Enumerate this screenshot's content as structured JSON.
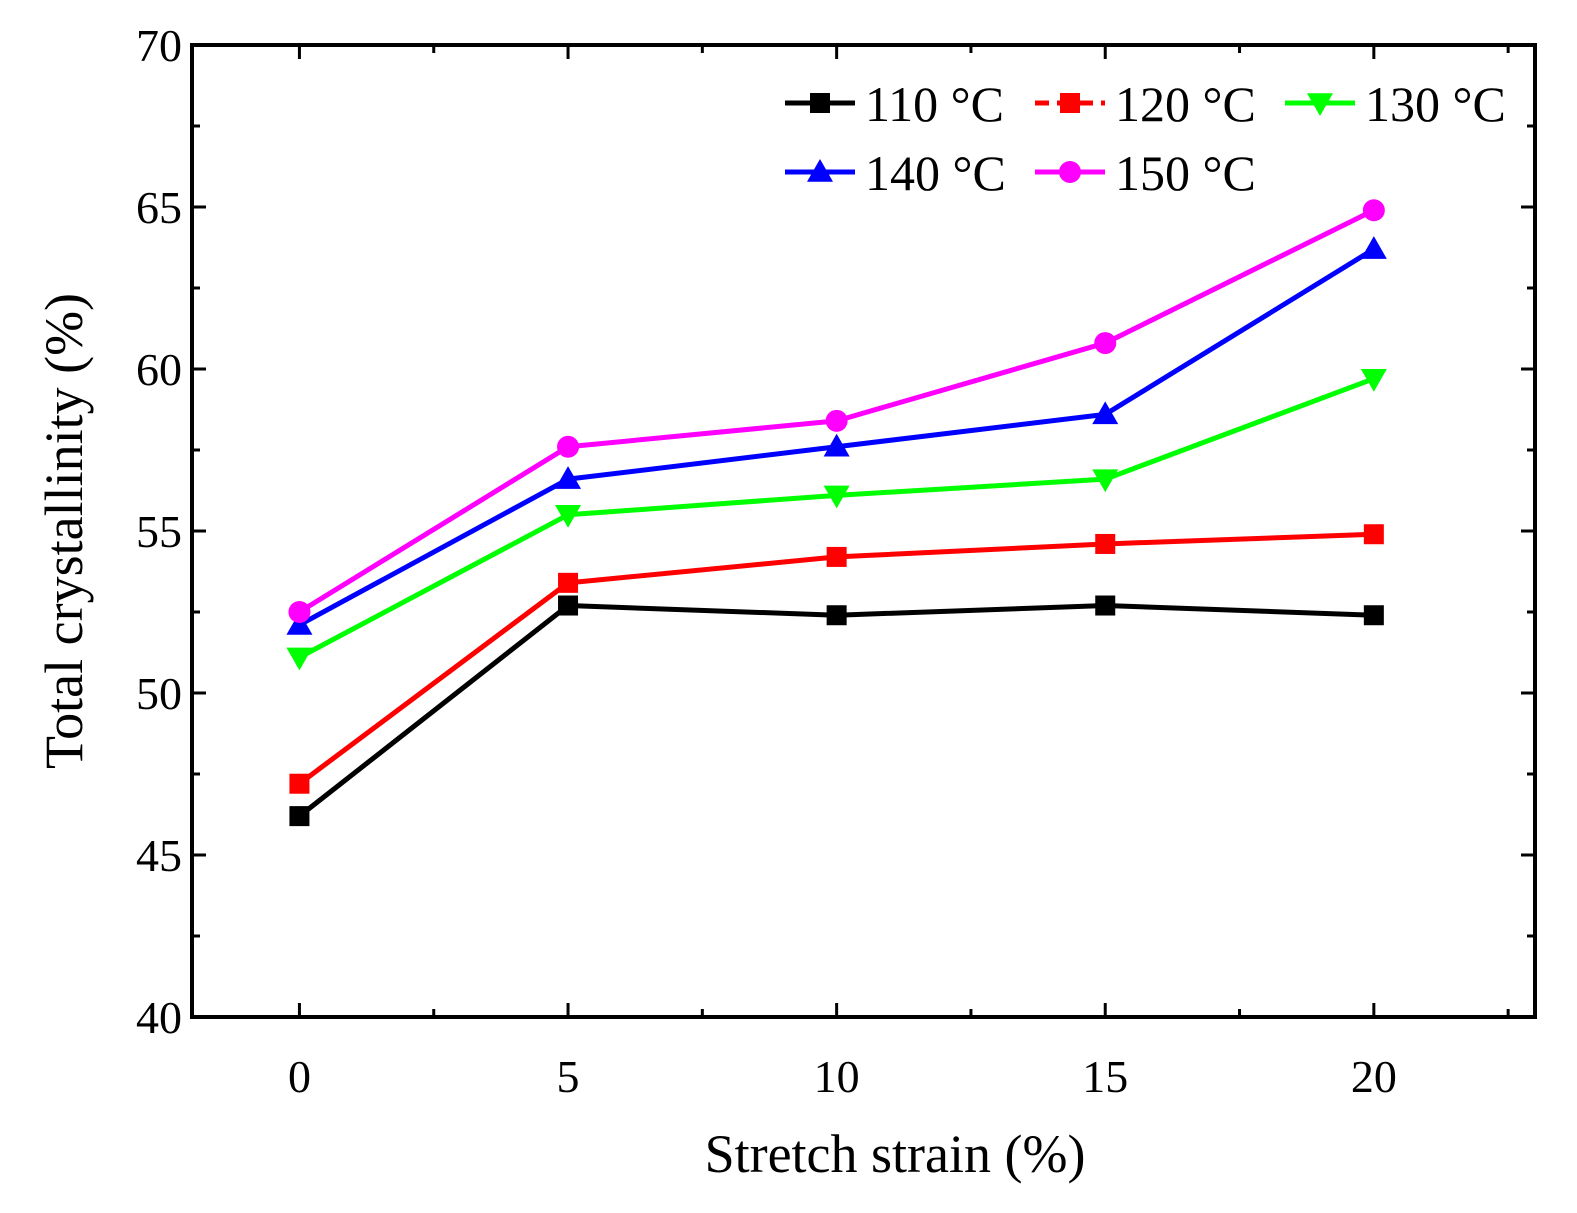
{
  "chart_data": {
    "type": "line",
    "xlabel": "Stretch strain (%)",
    "ylabel": "Total crystallinity (%)",
    "x": [
      0,
      5,
      10,
      15,
      20
    ],
    "x_ticks": [
      "0",
      "5",
      "10",
      "15",
      "20"
    ],
    "y_ticks": [
      "40",
      "45",
      "50",
      "55",
      "60",
      "65",
      "70"
    ],
    "xlim": [
      -2,
      23
    ],
    "ylim": [
      40,
      70
    ],
    "grid": false,
    "legend_position": "top-right",
    "series": [
      {
        "name": "110 °C",
        "color": "#000000",
        "marker": "square",
        "dashed": false,
        "values": [
          46.2,
          52.7,
          52.4,
          52.7,
          52.4
        ]
      },
      {
        "name": "120 °C",
        "color": "#ff0000",
        "marker": "square",
        "dashed": true,
        "values": [
          47.2,
          53.4,
          54.2,
          54.6,
          54.9
        ]
      },
      {
        "name": "130 °C",
        "color": "#00ff00",
        "marker": "triangle-down",
        "dashed": false,
        "values": [
          51.1,
          55.5,
          56.1,
          56.6,
          59.7
        ]
      },
      {
        "name": "140 °C",
        "color": "#0000ff",
        "marker": "triangle-up",
        "dashed": false,
        "values": [
          52.1,
          56.6,
          57.6,
          58.6,
          63.7
        ]
      },
      {
        "name": "150 °C",
        "color": "#ff00ff",
        "marker": "circle",
        "dashed": false,
        "values": [
          52.5,
          57.6,
          58.4,
          60.8,
          64.9
        ]
      }
    ]
  }
}
